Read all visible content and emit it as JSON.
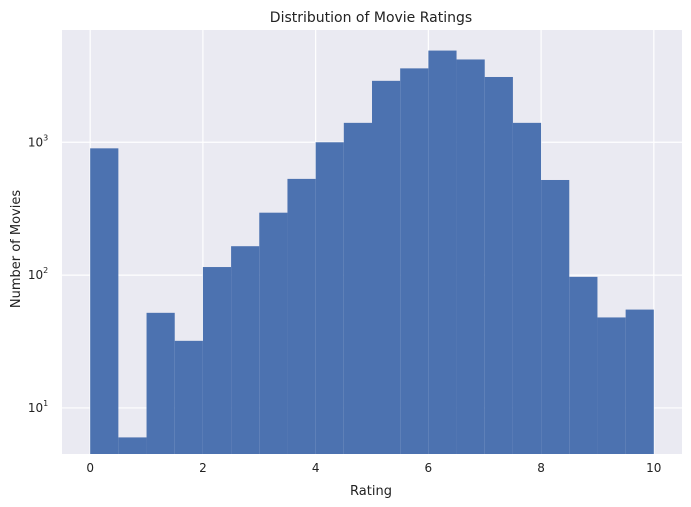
{
  "chart_data": {
    "type": "bar",
    "title": "Distribution of Movie Ratings",
    "xlabel": "Rating",
    "ylabel": "Number of Movies",
    "yscale": "log",
    "grid": true,
    "xlim": [
      -0.5,
      10.5
    ],
    "ylim": [
      4.5,
      7000
    ],
    "xticks": [
      0,
      2,
      4,
      6,
      8,
      10
    ],
    "yticks": [
      {
        "value": 10,
        "base": "10",
        "exp": "1"
      },
      {
        "value": 100,
        "base": "10",
        "exp": "2"
      },
      {
        "value": 1000,
        "base": "10",
        "exp": "3"
      }
    ],
    "bin_edges": [
      0,
      0.5,
      1,
      1.5,
      2,
      2.5,
      3,
      3.5,
      4,
      4.5,
      5,
      5.5,
      6,
      6.5,
      7,
      7.5,
      8,
      8.5,
      9,
      9.5,
      10
    ],
    "values": [
      900,
      6,
      52,
      32,
      115,
      165,
      295,
      530,
      1000,
      1400,
      2900,
      3600,
      4900,
      4200,
      3100,
      1400,
      520,
      97,
      48,
      55
    ],
    "colors": {
      "bar": "#4C72B0",
      "plot_bg": "#EAEAF2",
      "grid": "#ffffff",
      "text": "#222222"
    }
  }
}
